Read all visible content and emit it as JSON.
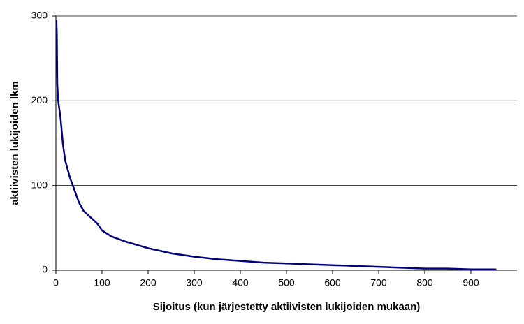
{
  "chart_data": {
    "type": "line",
    "xlabel": "Sijoitus (kun järjestetty aktiivisten lukijoiden mukaan)",
    "ylabel": "aktiivisten lukijoiden lkm",
    "x": [
      1,
      2,
      3,
      5,
      10,
      15,
      20,
      25,
      30,
      40,
      50,
      60,
      70,
      80,
      90,
      100,
      120,
      150,
      200,
      250,
      300,
      350,
      400,
      450,
      500,
      550,
      600,
      650,
      700,
      750,
      800,
      850,
      900,
      955
    ],
    "values": [
      295,
      280,
      220,
      200,
      180,
      150,
      130,
      120,
      110,
      95,
      80,
      70,
      65,
      60,
      55,
      47,
      40,
      34,
      26,
      20,
      16,
      13,
      11,
      9,
      8,
      7,
      6,
      5,
      4,
      3,
      2,
      2,
      1,
      1
    ],
    "color": "#000080",
    "xlim": [
      0,
      1000
    ],
    "xticks": [
      0,
      100,
      200,
      300,
      400,
      500,
      600,
      700,
      800,
      900
    ],
    "ylim": [
      0,
      300
    ],
    "yticks": [
      0,
      100,
      200,
      300
    ],
    "grid": true
  }
}
